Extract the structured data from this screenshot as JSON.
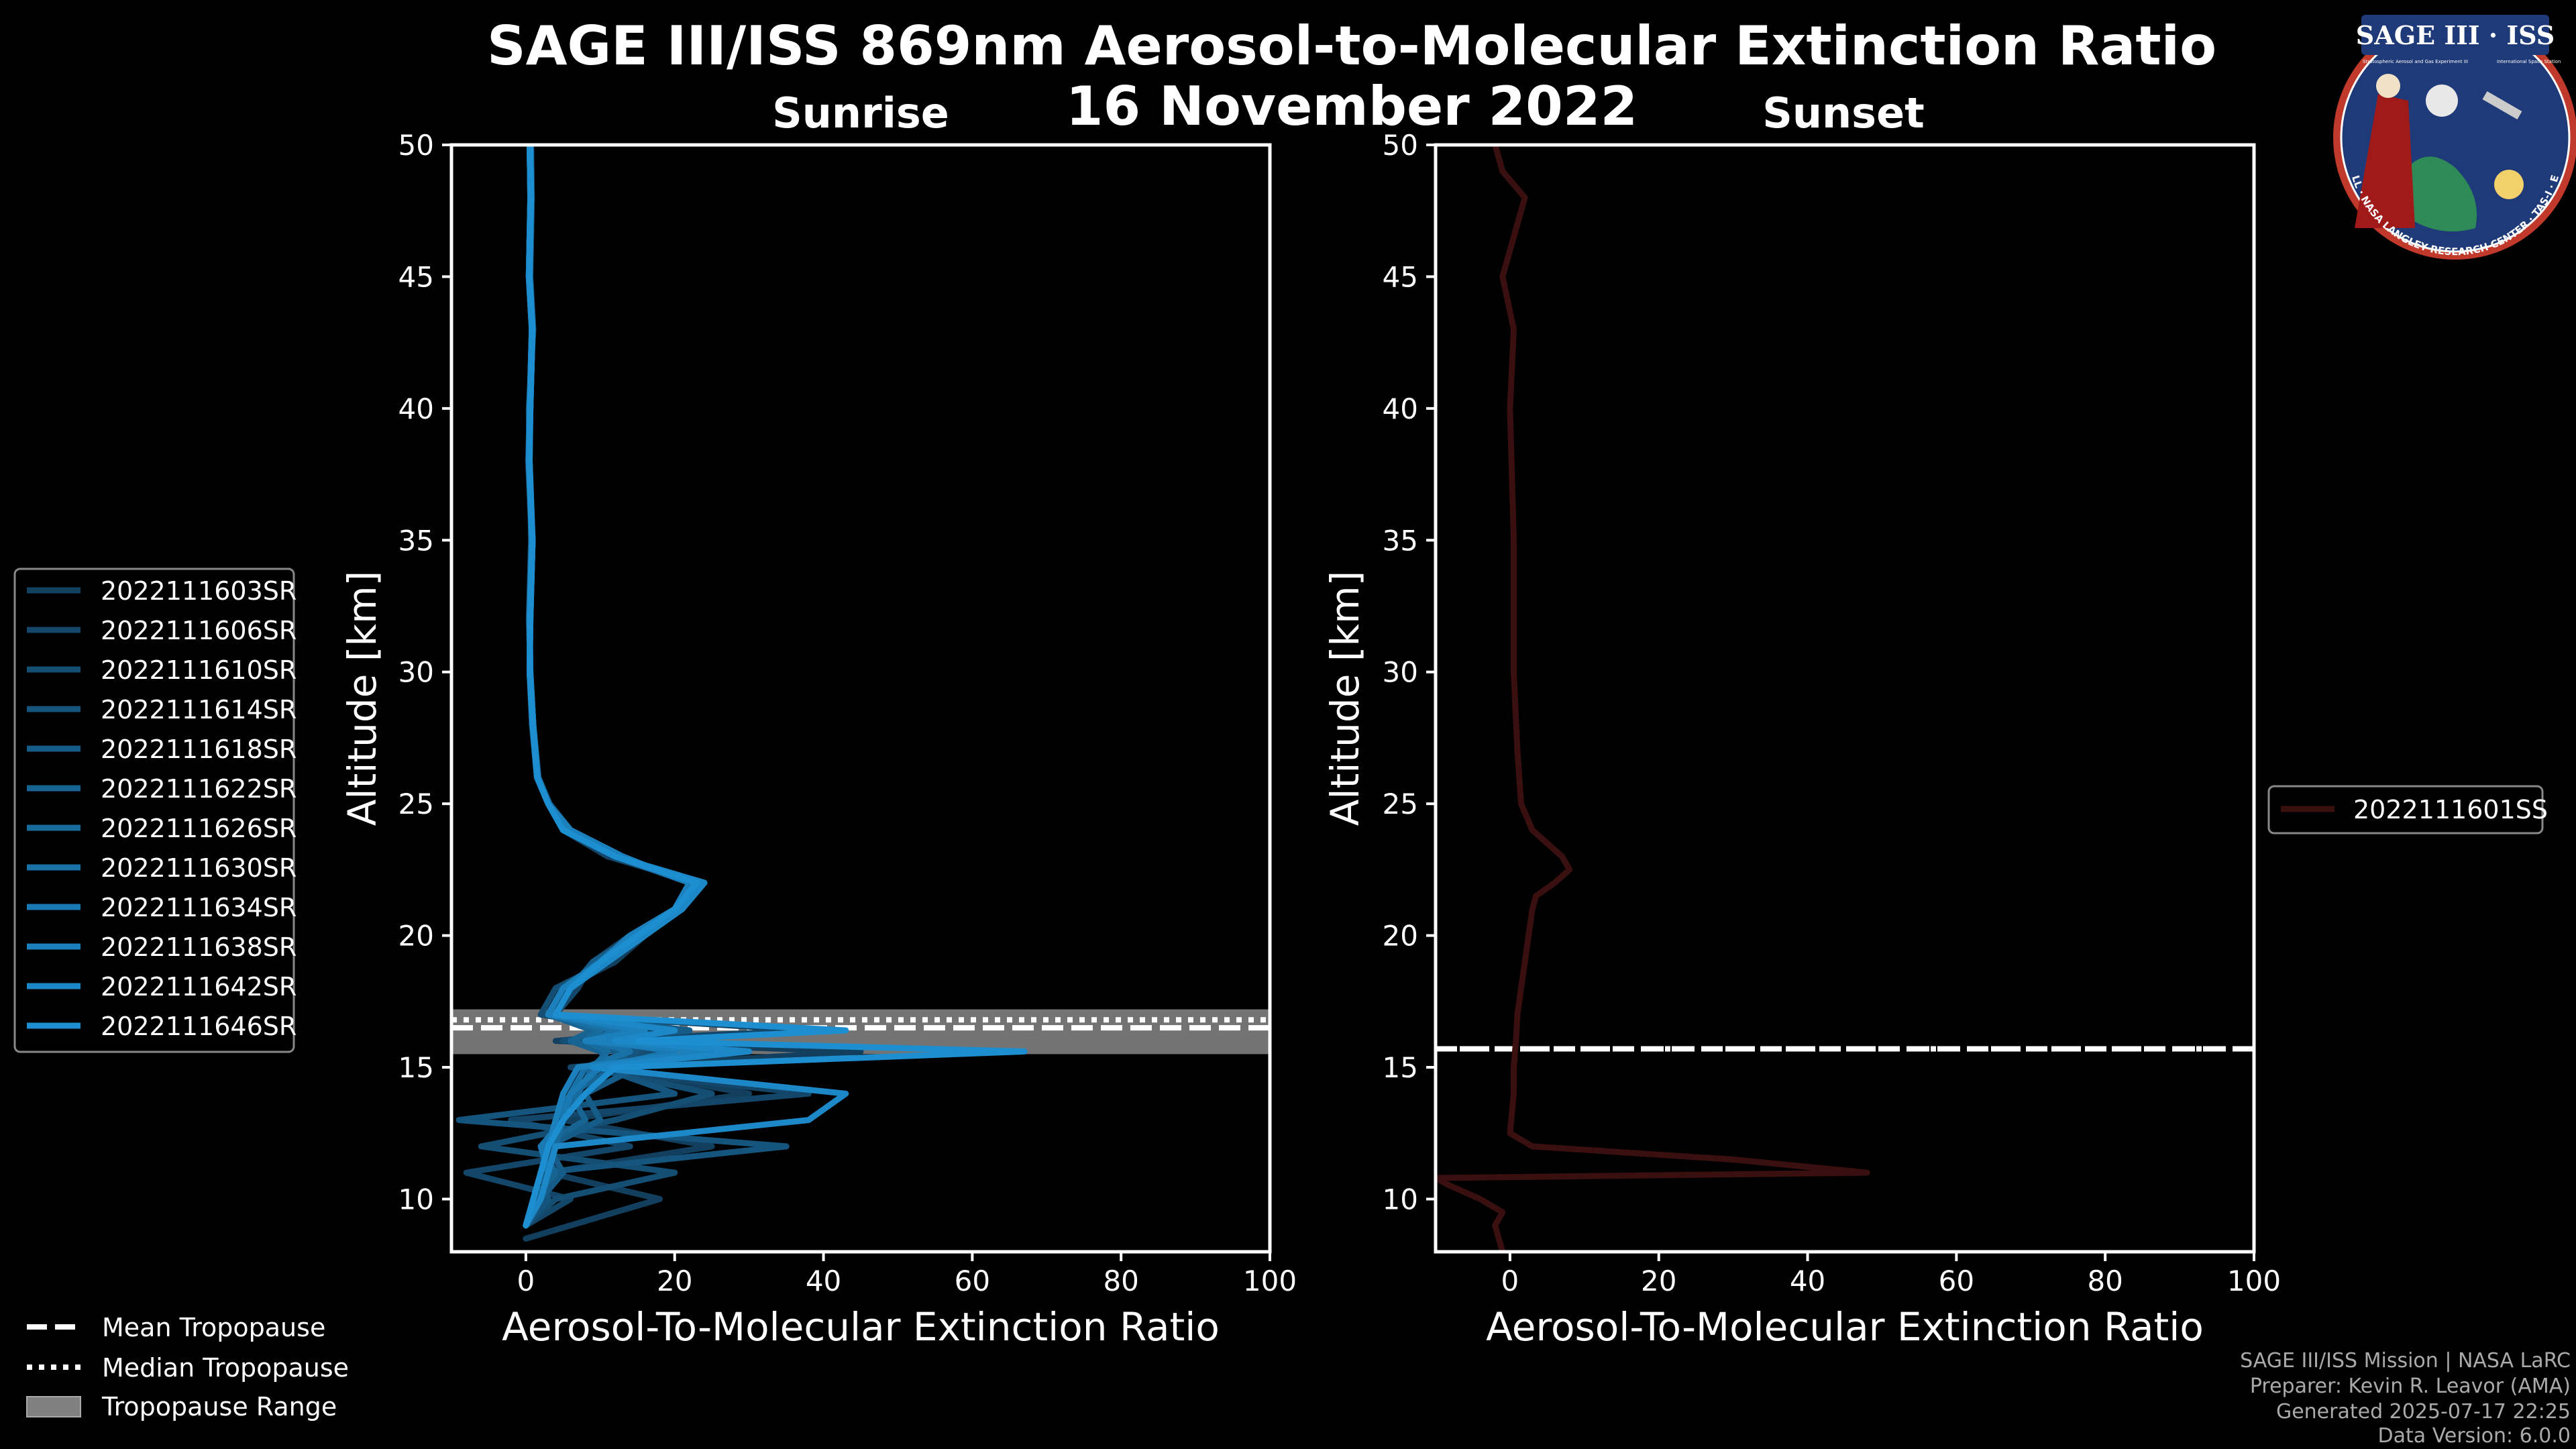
{
  "header": {
    "title_line1": "SAGE III/ISS 869nm Aerosol-to-Molecular Extinction Ratio",
    "title_line2": "16 November 2022"
  },
  "logo": {
    "name": "SAGE III · ISS",
    "subtitle_left": "Stratospheric Aerosol and Gas Experiment III",
    "subtitle_right": "International Space Station",
    "ring_text": "BALL · NASA LANGLEY RESEARCH CENTER · TAS-I · ESA"
  },
  "credits": {
    "line1": "SAGE III/ISS Mission | NASA LaRC",
    "line2": "Preparer: Kevin R. Leavor (AMA)",
    "line3": "Generated 2025-07-17 22:25",
    "line4": "Data Version: 6.0.0"
  },
  "tropopause_legend": {
    "mean": "Mean Tropopause",
    "median": "Median Tropopause",
    "range": "Tropopause Range"
  },
  "colors": {
    "background": "#000000",
    "sunrise_dark": "#123f5e",
    "sunrise_light": "#1d8fd1",
    "sunset": "#3a0f0f",
    "tropopause_band": "#808080"
  },
  "chart_data": [
    {
      "type": "line",
      "panel": "sunrise",
      "title": "Sunrise",
      "xlabel": "Aerosol-To-Molecular Extinction Ratio",
      "ylabel": "Altitude [km]",
      "xlim": [
        -10,
        100
      ],
      "ylim": [
        8,
        50
      ],
      "xticks": [
        0,
        20,
        40,
        60,
        80,
        100
      ],
      "yticks": [
        10,
        15,
        20,
        25,
        30,
        35,
        40,
        45,
        50
      ],
      "tropopause": {
        "mean": 16.5,
        "median": 16.8,
        "range": [
          15.5,
          17.2
        ]
      },
      "series": [
        {
          "name": "2022111603SR",
          "y": [
            8.5,
            10,
            11,
            12,
            13,
            14,
            15,
            15.6,
            16,
            16.4,
            17,
            18,
            19,
            20,
            21,
            22,
            23,
            24,
            25,
            26,
            28,
            30,
            32,
            35,
            38,
            40,
            43,
            45,
            48,
            50
          ],
          "x": [
            0,
            18,
            3,
            25,
            5,
            30,
            10,
            45,
            4,
            20,
            3,
            5,
            12,
            16,
            20,
            22,
            12,
            5,
            3,
            1.5,
            0.8,
            0.5,
            0.5,
            0.8,
            0.3,
            0.5,
            0.8,
            0.4,
            0.6,
            0.5
          ]
        },
        {
          "name": "2022111606SR",
          "y": [
            9,
            10,
            11,
            12,
            13,
            14,
            15,
            15.6,
            16,
            16.4,
            17,
            18,
            19,
            20,
            21,
            22,
            23,
            24,
            25,
            26,
            28,
            30,
            32,
            35,
            38,
            40,
            43,
            45,
            48,
            50
          ],
          "x": [
            0,
            6,
            -8,
            14,
            -2,
            38,
            6,
            30,
            8,
            38,
            4,
            7,
            9,
            14,
            20,
            23,
            11,
            5,
            3,
            1.6,
            0.9,
            0.5,
            0.5,
            0.9,
            0.4,
            0.6,
            0.9,
            0.5,
            0.7,
            0.6
          ]
        },
        {
          "name": "2022111610SR",
          "y": [
            9,
            10,
            11,
            12,
            13,
            14,
            15,
            15.6,
            16,
            16.4,
            17,
            18,
            19,
            20,
            21,
            22,
            23,
            24,
            25,
            26,
            28,
            30,
            32,
            35,
            38,
            40,
            43,
            45,
            48,
            50
          ],
          "x": [
            0,
            4,
            20,
            -6,
            12,
            25,
            8,
            18,
            5,
            15,
            2,
            4,
            11,
            15,
            20,
            22,
            13,
            6,
            3.2,
            1.7,
            1.0,
            0.6,
            0.4,
            0.7,
            0.5,
            0.4,
            1.0,
            0.6,
            0.8,
            0.7
          ]
        },
        {
          "name": "2022111614SR",
          "y": [
            9,
            10,
            11,
            12,
            13,
            14,
            15,
            15.6,
            16,
            16.4,
            17,
            18,
            19,
            20,
            21,
            22,
            23,
            24,
            25,
            26,
            28,
            30,
            32,
            35,
            38,
            40,
            43,
            45,
            48,
            50
          ],
          "x": [
            0,
            3,
            2,
            35,
            -9,
            20,
            10,
            15,
            6,
            12,
            3,
            5,
            10,
            14,
            21,
            24,
            12,
            5,
            3,
            1.5,
            0.9,
            0.5,
            0.6,
            0.9,
            0.4,
            0.6,
            0.9,
            0.5,
            0.7,
            0.6
          ]
        },
        {
          "name": "2022111618SR",
          "y": [
            9,
            10,
            11,
            12,
            13,
            14,
            15,
            15.6,
            16,
            16.4,
            17,
            18,
            19,
            20,
            21,
            22,
            23,
            24,
            25,
            26,
            28,
            30,
            32,
            35,
            38,
            40,
            43,
            45,
            48,
            50
          ],
          "x": [
            0,
            2,
            5,
            3,
            10,
            8,
            15,
            12,
            7,
            22,
            4,
            6,
            9,
            15,
            21,
            23,
            12,
            5,
            3,
            1.6,
            1.0,
            0.6,
            0.5,
            0.8,
            0.4,
            0.5,
            0.8,
            0.4,
            0.6,
            0.5
          ]
        },
        {
          "name": "2022111622SR",
          "y": [
            9,
            10,
            11,
            12,
            13,
            14,
            15,
            15.6,
            16,
            16.4,
            17,
            18,
            19,
            20,
            21,
            22,
            23,
            24,
            25,
            26,
            28,
            30,
            32,
            35,
            38,
            40,
            43,
            45,
            48,
            50
          ],
          "x": [
            0,
            1,
            4,
            2,
            8,
            6,
            12,
            10,
            6,
            9,
            3,
            5,
            10,
            14,
            20,
            22,
            13,
            6,
            3,
            1.5,
            0.9,
            0.5,
            0.6,
            0.9,
            0.5,
            0.6,
            0.9,
            0.5,
            0.7,
            0.6
          ]
        },
        {
          "name": "2022111626SR",
          "y": [
            9,
            10,
            11,
            12,
            13,
            14,
            15,
            15.6,
            16,
            16.4,
            17,
            18,
            19,
            20,
            21,
            22,
            23,
            24,
            25,
            26,
            28,
            30,
            32,
            35,
            38,
            40,
            43,
            45,
            48,
            50
          ],
          "x": [
            0,
            2,
            3,
            4,
            5,
            7,
            9,
            11,
            8,
            10,
            4,
            6,
            11,
            16,
            21,
            23,
            12,
            5,
            3.1,
            1.6,
            0.9,
            0.5,
            0.5,
            0.8,
            0.4,
            0.5,
            0.8,
            0.4,
            0.6,
            0.5
          ]
        },
        {
          "name": "2022111630SR",
          "y": [
            9,
            10,
            11,
            12,
            13,
            14,
            15,
            15.6,
            16,
            16.4,
            17,
            18,
            19,
            20,
            21,
            22,
            23,
            24,
            25,
            26,
            28,
            30,
            32,
            35,
            38,
            40,
            43,
            45,
            48,
            50
          ],
          "x": [
            0,
            1,
            2,
            3,
            4,
            6,
            8,
            14,
            9,
            12,
            3,
            5,
            10,
            15,
            20,
            22,
            12,
            5,
            3,
            1.5,
            0.9,
            0.5,
            0.6,
            0.9,
            0.4,
            0.6,
            0.9,
            0.5,
            0.7,
            0.6
          ]
        },
        {
          "name": "2022111634SR",
          "y": [
            9,
            10,
            11,
            12,
            13,
            14,
            15,
            15.6,
            16,
            16.4,
            17,
            18,
            19,
            20,
            21,
            22,
            23,
            24,
            25,
            26,
            28,
            30,
            32,
            35,
            38,
            40,
            43,
            45,
            48,
            50
          ],
          "x": [
            0,
            2,
            3,
            2,
            5,
            6,
            10,
            20,
            10,
            14,
            4,
            6,
            11,
            15,
            21,
            23,
            12,
            5,
            3,
            1.6,
            1.0,
            0.6,
            0.5,
            0.8,
            0.5,
            0.5,
            0.8,
            0.4,
            0.6,
            0.5
          ]
        },
        {
          "name": "2022111638SR",
          "y": [
            9,
            10,
            11,
            12,
            13,
            14,
            15,
            15.6,
            16,
            16.4,
            17,
            18,
            19,
            20,
            21,
            22,
            23,
            24,
            25,
            26,
            28,
            30,
            32,
            35,
            38,
            40,
            43,
            45,
            48,
            50
          ],
          "x": [
            0,
            1,
            2,
            3,
            4,
            5,
            7,
            25,
            8,
            16,
            3,
            5,
            10,
            14,
            20,
            22,
            13,
            6,
            3,
            1.5,
            0.9,
            0.5,
            0.6,
            0.9,
            0.4,
            0.6,
            0.9,
            0.5,
            0.7,
            0.6
          ]
        },
        {
          "name": "2022111642SR",
          "y": [
            9,
            10,
            11,
            12,
            13,
            14,
            15,
            15.6,
            16,
            16.4,
            17,
            18,
            19,
            20,
            21,
            22,
            23,
            24,
            25,
            26,
            28,
            30,
            32,
            35,
            38,
            40,
            43,
            45,
            48,
            50
          ],
          "x": [
            0,
            2,
            3,
            4,
            38,
            43,
            9,
            30,
            12,
            20,
            4,
            6,
            11,
            16,
            21,
            24,
            12,
            5,
            3,
            1.6,
            1.0,
            0.6,
            0.5,
            0.8,
            0.4,
            0.5,
            0.8,
            0.4,
            0.6,
            0.5
          ]
        },
        {
          "name": "2022111646SR",
          "y": [
            9,
            10,
            11,
            12,
            13,
            14,
            15,
            15.6,
            16,
            16.4,
            17,
            18,
            19,
            20,
            21,
            22,
            23,
            24,
            25,
            26,
            28,
            30,
            32,
            35,
            38,
            40,
            43,
            45,
            48,
            50
          ],
          "x": [
            0,
            1,
            2,
            3,
            5,
            8,
            12,
            67,
            15,
            43,
            4,
            6,
            10,
            15,
            20,
            23,
            12,
            5,
            3,
            1.5,
            0.9,
            0.5,
            0.6,
            0.9,
            0.5,
            0.6,
            0.9,
            0.5,
            0.7,
            0.6
          ]
        }
      ]
    },
    {
      "type": "line",
      "panel": "sunset",
      "title": "Sunset",
      "xlabel": "Aerosol-To-Molecular Extinction Ratio",
      "ylabel": "Altitude [km]",
      "xlim": [
        -10,
        100
      ],
      "ylim": [
        8,
        50
      ],
      "xticks": [
        0,
        20,
        40,
        60,
        80,
        100
      ],
      "yticks": [
        10,
        15,
        20,
        25,
        30,
        35,
        40,
        45,
        50
      ],
      "tropopause": {
        "mean": 15.7,
        "median": 15.7
      },
      "series": [
        {
          "name": "2022111601SS",
          "y": [
            8,
            9,
            9.5,
            10,
            10.5,
            10.8,
            11,
            11.5,
            12,
            12.5,
            14,
            15,
            16,
            17,
            18,
            19,
            20,
            21,
            21.5,
            22,
            22.5,
            23,
            24,
            25,
            27,
            30,
            35,
            40,
            43,
            45,
            47,
            48,
            49,
            50
          ],
          "x": [
            -1,
            -2,
            -1,
            -4,
            -8,
            -10,
            48,
            30,
            3,
            0,
            0.5,
            0.5,
            0.8,
            1,
            1.5,
            2,
            2.5,
            3,
            3.5,
            6,
            8,
            7,
            3,
            1.5,
            1,
            0.5,
            0.5,
            0,
            0.5,
            -1,
            1,
            2,
            -1,
            -2
          ]
        }
      ]
    }
  ]
}
